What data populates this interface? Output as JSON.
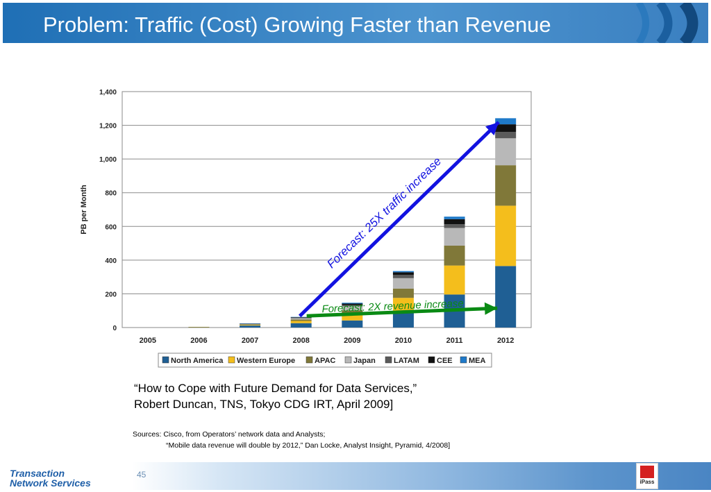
{
  "header": {
    "title": "Problem: Traffic (Cost) Growing Faster than Revenue"
  },
  "colors": {
    "North America": "#1f5f94",
    "Western Europe": "#f4be1c",
    "APAC": "#807839",
    "Japan": "#b8b8b8",
    "LATAM": "#5a5a5a",
    "CEE": "#111111",
    "MEA": "#1f7ac9",
    "arrow_traffic": "#1212e0",
    "arrow_revenue": "#0a8a14"
  },
  "chart_data": {
    "type": "bar",
    "stacked": true,
    "categories": [
      "2005",
      "2006",
      "2007",
      "2008",
      "2009",
      "2010",
      "2011",
      "2012"
    ],
    "ylabel": "PB per Month",
    "ylim": [
      0,
      1400
    ],
    "yticks": [
      "0",
      "200",
      "400",
      "600",
      "800",
      "1,000",
      "1,200",
      "1,400"
    ],
    "grid": true,
    "legend_position": "bottom",
    "series": [
      {
        "name": "North America",
        "values": [
          0,
          2,
          12,
          26,
          42,
          88,
          196,
          365
        ]
      },
      {
        "name": "Western Europe",
        "values": [
          0,
          1,
          4,
          13,
          30,
          88,
          172,
          358
        ]
      },
      {
        "name": "APAC",
        "values": [
          0,
          1,
          3,
          9,
          30,
          55,
          118,
          240
        ]
      },
      {
        "name": "Japan",
        "values": [
          0,
          0,
          2,
          7,
          24,
          62,
          105,
          160
        ]
      },
      {
        "name": "LATAM",
        "values": [
          0,
          0,
          1,
          3,
          8,
          20,
          22,
          38
        ]
      },
      {
        "name": "CEE",
        "values": [
          0,
          0,
          1,
          3,
          8,
          15,
          30,
          45
        ]
      },
      {
        "name": "MEA",
        "values": [
          0,
          0,
          1,
          2,
          5,
          7,
          15,
          36
        ]
      }
    ],
    "annotations": [
      {
        "text": "Forecast: 25X traffic increase",
        "from": [
          "2008",
          60
        ],
        "to": [
          "2012",
          1235
        ]
      },
      {
        "text": "Forecast:  2X revenue increase",
        "from": [
          "2008",
          65
        ],
        "to": [
          "2012",
          115
        ]
      }
    ]
  },
  "quote": {
    "line1": "“How to Cope with Future Demand for Data Services,”",
    "line2": "Robert Duncan, TNS, Tokyo CDG IRT, April 2009]"
  },
  "sources": {
    "line1": "Sources: Cisco, from Operators’ network data and Analysts;",
    "line2": "“Mobile data revenue will double by 2012,” Dan Locke, Analyst Insight, Pyramid, 4/2008]"
  },
  "footer": {
    "page_number": "45",
    "logo_left_line1": "Transaction",
    "logo_left_line2": "Network Services",
    "logo_right": "iPass"
  }
}
